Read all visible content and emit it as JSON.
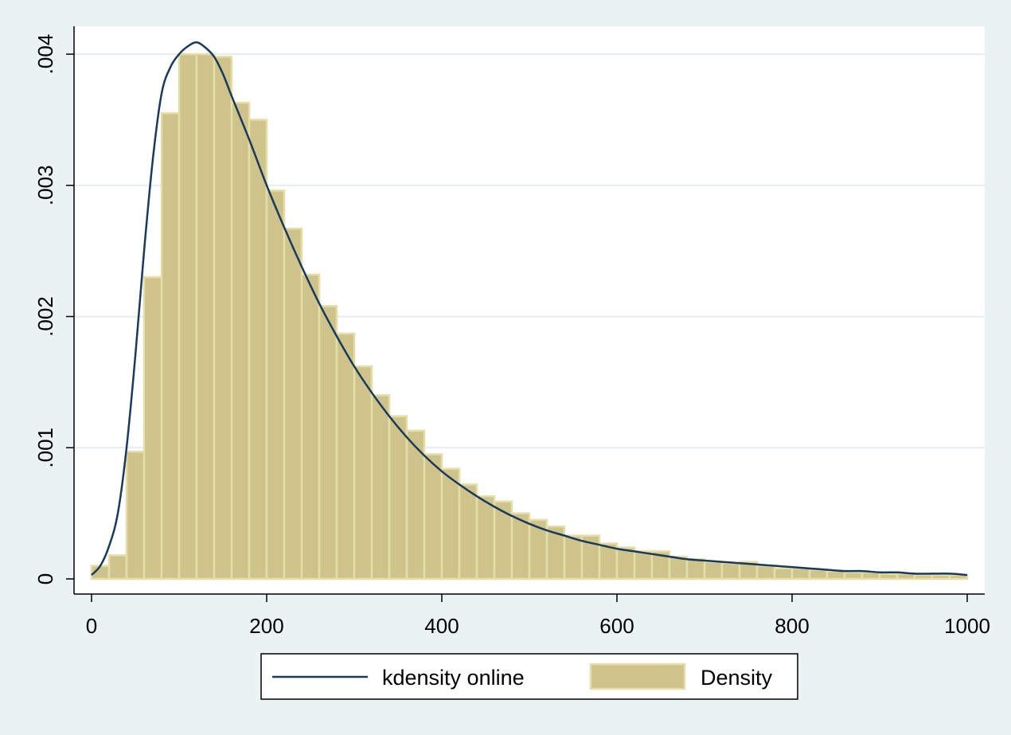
{
  "chart_data": {
    "type": "bar",
    "title": "",
    "xlabel": "",
    "ylabel": "",
    "xlim": [
      -10,
      1010
    ],
    "ylim": [
      0,
      0.0042
    ],
    "x_ticks": [
      0,
      200,
      400,
      600,
      800,
      1000
    ],
    "x_tick_labels": [
      "0",
      "200",
      "400",
      "600",
      "800",
      "1000"
    ],
    "y_ticks": [
      0,
      0.001,
      0.002,
      0.003,
      0.004
    ],
    "y_tick_labels": [
      "0",
      ".001",
      ".002",
      ".003",
      ".004"
    ],
    "grid": true,
    "legend_position": "bottom",
    "bin_width": 20,
    "series": [
      {
        "name": "Density",
        "type": "bar",
        "color": "#cdc38b",
        "edge_color": "#e6dea9",
        "bins_start": [
          0,
          20,
          40,
          60,
          80,
          100,
          120,
          140,
          160,
          180,
          200,
          220,
          240,
          260,
          280,
          300,
          320,
          340,
          360,
          380,
          400,
          420,
          440,
          460,
          480,
          500,
          520,
          540,
          560,
          580,
          600,
          620,
          640,
          660,
          680,
          700,
          720,
          740,
          760,
          780,
          800,
          820,
          840,
          860,
          880,
          900,
          920,
          940,
          960,
          980
        ],
        "values": [
          0.0001,
          0.00018,
          0.00097,
          0.0023,
          0.00355,
          0.004,
          0.004,
          0.00398,
          0.00363,
          0.0035,
          0.00296,
          0.00267,
          0.00232,
          0.00208,
          0.00187,
          0.00162,
          0.0014,
          0.00124,
          0.00113,
          0.00095,
          0.00084,
          0.00072,
          0.00063,
          0.00059,
          0.0005,
          0.00045,
          0.0004,
          0.00033,
          0.00033,
          0.00027,
          0.00024,
          0.00021,
          0.00021,
          0.00017,
          0.00015,
          0.00013,
          0.00012,
          0.00013,
          0.0001,
          8e-05,
          8e-05,
          7e-05,
          6e-05,
          5e-05,
          5e-05,
          4e-05,
          4e-05,
          3e-05,
          3e-05,
          3e-05
        ]
      },
      {
        "name": "kdensity online",
        "type": "line",
        "color": "#1a3a5c",
        "x": [
          0,
          10,
          20,
          30,
          40,
          50,
          60,
          70,
          80,
          90,
          100,
          110,
          120,
          130,
          140,
          150,
          160,
          180,
          200,
          220,
          240,
          260,
          280,
          300,
          320,
          340,
          360,
          380,
          400,
          420,
          440,
          460,
          480,
          500,
          520,
          540,
          560,
          580,
          600,
          620,
          640,
          660,
          680,
          700,
          720,
          740,
          760,
          780,
          800,
          820,
          840,
          860,
          880,
          900,
          920,
          940,
          960,
          980,
          1000
        ],
        "y": [
          3e-05,
          0.0001,
          0.00025,
          0.0005,
          0.001,
          0.0017,
          0.0025,
          0.0032,
          0.0037,
          0.0039,
          0.004,
          0.00406,
          0.00409,
          0.00405,
          0.00398,
          0.00385,
          0.00368,
          0.00335,
          0.003,
          0.00268,
          0.00238,
          0.0021,
          0.00185,
          0.00162,
          0.00142,
          0.00124,
          0.00108,
          0.00094,
          0.00082,
          0.00072,
          0.00063,
          0.00055,
          0.00048,
          0.00042,
          0.00037,
          0.00033,
          0.00029,
          0.00026,
          0.00023,
          0.00021,
          0.00019,
          0.00017,
          0.00015,
          0.00014,
          0.00013,
          0.00012,
          0.00011,
          0.0001,
          9e-05,
          8e-05,
          7e-05,
          6e-05,
          6e-05,
          5e-05,
          5e-05,
          4e-05,
          4e-05,
          4e-05,
          3e-05
        ]
      }
    ],
    "legend": {
      "line_label": "kdensity online",
      "bar_label": "Density"
    }
  }
}
